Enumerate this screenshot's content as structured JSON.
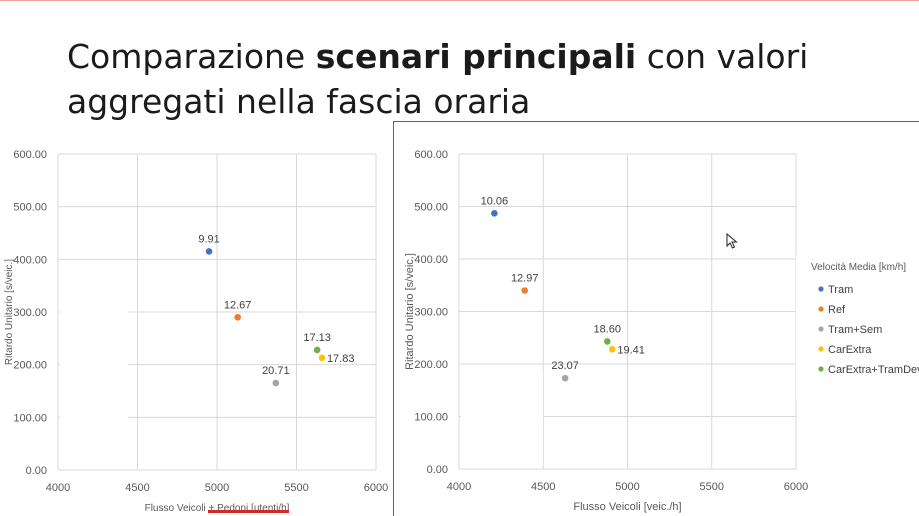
{
  "slide": {
    "title_part1": "Comparazione ",
    "title_bold": "scenari principali",
    "title_part2": " con valori",
    "title_line2": "aggregati nella fascia oraria"
  },
  "colors": {
    "Tram": "#4472c4",
    "Ref": "#ed7d31",
    "Tram+Sem": "#a5a5a5",
    "CarExtra": "#ffc000",
    "CarExtra+TramDev": "#70ad47",
    "frame": "#2a6fb2",
    "underline": "#d22a2a"
  },
  "icons": [
    "mouse-cursor-icon"
  ],
  "chart_data": [
    {
      "type": "scatter",
      "xlabel": "Flusso Veicoli + Pedoni [utenti/h]",
      "ylabel": "Ritardo Unitario [s/veic.]",
      "xlim": [
        4000,
        6000
      ],
      "ylim": [
        0,
        600
      ],
      "xticks": [
        "4000",
        "4500",
        "5000",
        "5500",
        "6000"
      ],
      "yticks": [
        "0.00",
        "100.00",
        "200.00",
        "300.00",
        "400.00",
        "500.00",
        "600.00"
      ],
      "grid": true,
      "points": [
        {
          "series": "Tram",
          "x": 4950,
          "y": 415,
          "label": "9.91"
        },
        {
          "series": "Ref",
          "x": 5130,
          "y": 290,
          "label": "12.67"
        },
        {
          "series": "Tram+Sem",
          "x": 5370,
          "y": 165,
          "label": "20.71"
        },
        {
          "series": "CarExtra+TramDev",
          "x": 5630,
          "y": 228,
          "label": "17.13"
        },
        {
          "series": "CarExtra",
          "x": 5660,
          "y": 213,
          "label": "17.83"
        }
      ]
    },
    {
      "type": "scatter",
      "xlabel": "Flusso Veicoli [veic./h]",
      "ylabel": "Ritardo Unitario [s/veic.]",
      "xlim": [
        4000,
        6000
      ],
      "ylim": [
        0,
        600
      ],
      "xticks": [
        "4000",
        "4500",
        "5000",
        "5500",
        "6000"
      ],
      "yticks": [
        "0.00",
        "100.00",
        "200.00",
        "300.00",
        "400.00",
        "500.00",
        "600.00"
      ],
      "grid": true,
      "legend_title": "Velocità Media [km/h]",
      "legend_position": "right",
      "series": [
        "Tram",
        "Ref",
        "Tram+Sem",
        "CarExtra",
        "CarExtra+TramDev"
      ],
      "points": [
        {
          "series": "Tram",
          "x": 4210,
          "y": 487,
          "label": "10.06"
        },
        {
          "series": "Ref",
          "x": 4390,
          "y": 340,
          "label": "12.97"
        },
        {
          "series": "Tram+Sem",
          "x": 4630,
          "y": 173,
          "label": "23.07"
        },
        {
          "series": "CarExtra+TramDev",
          "x": 4880,
          "y": 243,
          "label": "18.60"
        },
        {
          "series": "CarExtra",
          "x": 4910,
          "y": 228,
          "label": "19.41"
        }
      ]
    }
  ]
}
